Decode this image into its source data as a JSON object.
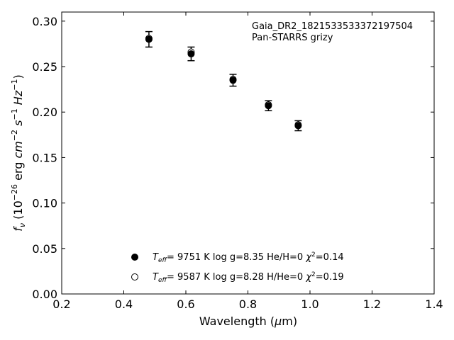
{
  "chart_data": {
    "type": "scatter",
    "annotation_lines": [
      "Gaia_DR2_1821533533372197504",
      "Pan-STARRS grizy"
    ],
    "xlabel": {
      "prefix": "Wavelength (",
      "mu": "μ",
      "suffix": "m)"
    },
    "ylabel": {
      "text": "f_ν (10^-26 erg cm^-2 s^-1 Hz^-1)"
    },
    "xlim": [
      0.2,
      1.4
    ],
    "ylim": [
      0.0,
      0.31
    ],
    "xticks": [
      0.2,
      0.4,
      0.6,
      0.8,
      1.0,
      1.2,
      1.4
    ],
    "xtick_labels": [
      "0.2",
      "0.4",
      "0.6",
      "0.8",
      "1.0",
      "1.2",
      "1.4"
    ],
    "yticks": [
      0.0,
      0.05,
      0.1,
      0.15,
      0.2,
      0.25,
      0.3
    ],
    "ytick_labels": [
      "0.00",
      "0.05",
      "0.10",
      "0.15",
      "0.20",
      "0.25",
      "0.30"
    ],
    "grid": false,
    "legend_position": "bottom-left",
    "series": [
      {
        "marker": "filled-circle",
        "legend": {
          "teff": "9751 K",
          "logg": "log g=8.35",
          "comp": "He/H=0",
          "chi2": "=0.14"
        },
        "points": [
          {
            "x": 0.481,
            "y": 0.28,
            "err": 0.0085
          },
          {
            "x": 0.617,
            "y": 0.264,
            "err": 0.0075
          },
          {
            "x": 0.752,
            "y": 0.235,
            "err": 0.0065
          },
          {
            "x": 0.866,
            "y": 0.207,
            "err": 0.0055
          },
          {
            "x": 0.962,
            "y": 0.185,
            "err": 0.0055
          }
        ]
      },
      {
        "marker": "open-circle",
        "legend": {
          "teff": "9587 K",
          "logg": "log g=8.28",
          "comp": "H/He=0",
          "chi2": "=0.19"
        },
        "points": [
          {
            "x": 0.481,
            "y": 0.281
          },
          {
            "x": 0.617,
            "y": 0.266
          },
          {
            "x": 0.752,
            "y": 0.236
          },
          {
            "x": 0.866,
            "y": 0.208
          },
          {
            "x": 0.962,
            "y": 0.186
          }
        ]
      }
    ]
  }
}
